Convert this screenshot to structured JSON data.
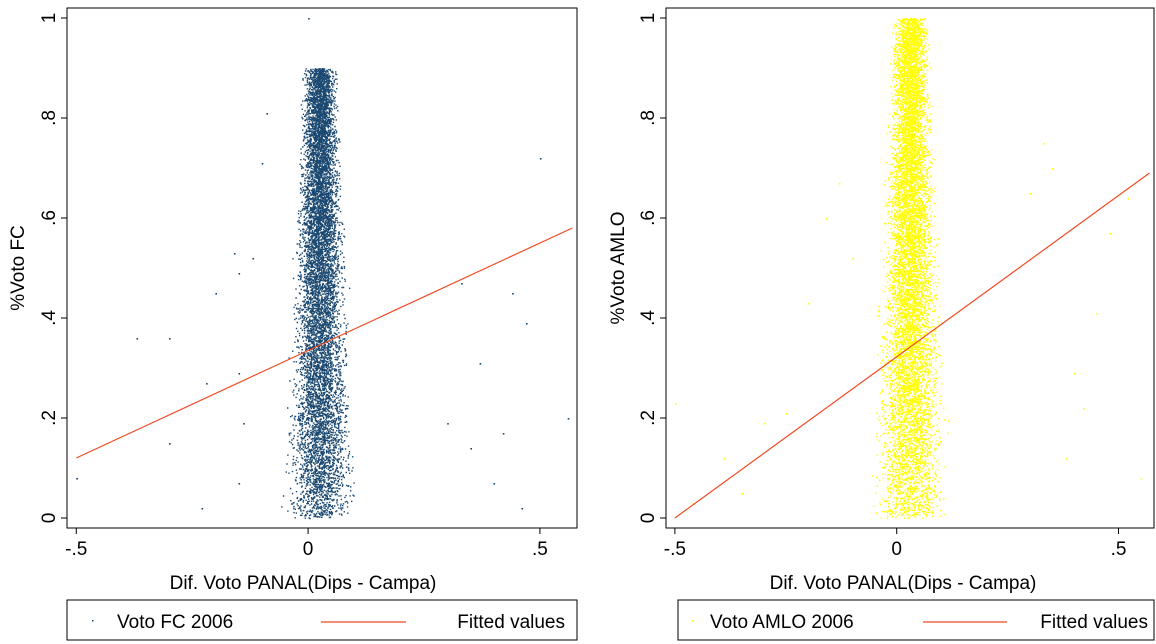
{
  "chart_data": [
    {
      "type": "scatter",
      "xlabel": "Dif. Voto PANAL(Dips - Campa)",
      "ylabel": "%Voto FC",
      "xlim": [
        -0.52,
        0.58
      ],
      "ylim": [
        -0.02,
        1.02
      ],
      "xticks": [
        {
          "value": -0.5,
          "label": "-.5"
        },
        {
          "value": 0,
          "label": "0"
        },
        {
          "value": 0.5,
          "label": ".5"
        }
      ],
      "yticks": [
        {
          "value": 0,
          "label": "0"
        },
        {
          "value": 0.2,
          "label": ".2"
        },
        {
          "value": 0.4,
          "label": ".4"
        },
        {
          "value": 0.6,
          "label": ".6"
        },
        {
          "value": 0.8,
          "label": ".8"
        },
        {
          "value": 1,
          "label": "1"
        }
      ],
      "series": [
        {
          "name": "Voto FC 2006",
          "kind": "scatter",
          "color": "#1a4870",
          "dense_region": {
            "x_center": 0.025,
            "x_spread": 0.045,
            "y_range": [
              0.0,
              0.9
            ]
          },
          "outliers": [
            [
              -0.5,
              0.08
            ],
            [
              -0.37,
              0.36
            ],
            [
              -0.3,
              0.36
            ],
            [
              -0.2,
              0.45
            ],
            [
              -0.16,
              0.53
            ],
            [
              -0.15,
              0.49
            ],
            [
              -0.12,
              0.52
            ],
            [
              -0.1,
              0.71
            ],
            [
              -0.09,
              0.81
            ],
            [
              -0.23,
              0.02
            ],
            [
              -0.15,
              0.07
            ],
            [
              -0.14,
              0.19
            ],
            [
              -0.3,
              0.15
            ],
            [
              -0.15,
              0.29
            ],
            [
              -0.22,
              0.27
            ],
            [
              0.0,
              1.0
            ],
            [
              0.3,
              0.19
            ],
            [
              0.35,
              0.14
            ],
            [
              0.4,
              0.07
            ],
            [
              0.42,
              0.17
            ],
            [
              0.44,
              0.45
            ],
            [
              0.46,
              0.02
            ],
            [
              0.47,
              0.39
            ],
            [
              0.5,
              0.72
            ],
            [
              0.56,
              0.2
            ],
            [
              0.33,
              0.47
            ],
            [
              0.37,
              0.31
            ]
          ]
        },
        {
          "name": "Fitted values",
          "kind": "line",
          "color": "#f04b23",
          "x": [
            -0.5,
            0.57
          ],
          "y": [
            0.12,
            0.58
          ]
        }
      ],
      "legend": {
        "position": "bottom",
        "entries": [
          "Voto FC 2006",
          "Fitted values"
        ]
      }
    },
    {
      "type": "scatter",
      "xlabel": "Dif. Voto PANAL(Dips - Campa)",
      "ylabel": "%Voto AMLO",
      "xlim": [
        -0.52,
        0.58
      ],
      "ylim": [
        -0.02,
        1.02
      ],
      "xticks": [
        {
          "value": -0.5,
          "label": "-.5"
        },
        {
          "value": 0,
          "label": "0"
        },
        {
          "value": 0.5,
          "label": ".5"
        }
      ],
      "yticks": [
        {
          "value": 0,
          "label": "0"
        },
        {
          "value": 0.2,
          "label": ".2"
        },
        {
          "value": 0.4,
          "label": ".4"
        },
        {
          "value": 0.6,
          "label": ".6"
        },
        {
          "value": 0.8,
          "label": ".8"
        },
        {
          "value": 1,
          "label": "1"
        }
      ],
      "series": [
        {
          "name": "Voto AMLO 2006",
          "kind": "scatter",
          "color": "#ffff00",
          "dense_region": {
            "x_center": 0.03,
            "x_spread": 0.05,
            "y_range": [
              0.0,
              1.0
            ]
          },
          "outliers": [
            [
              -0.5,
              0.23
            ],
            [
              -0.46,
              0.03
            ],
            [
              -0.39,
              0.12
            ],
            [
              -0.3,
              0.19
            ],
            [
              -0.25,
              0.21
            ],
            [
              -0.2,
              0.43
            ],
            [
              -0.16,
              0.6
            ],
            [
              -0.13,
              0.67
            ],
            [
              -0.1,
              0.52
            ],
            [
              -0.35,
              0.05
            ],
            [
              0.3,
              0.65
            ],
            [
              0.35,
              0.7
            ],
            [
              0.38,
              0.12
            ],
            [
              0.4,
              0.29
            ],
            [
              0.45,
              0.41
            ],
            [
              0.48,
              0.57
            ],
            [
              0.52,
              0.64
            ],
            [
              0.55,
              0.08
            ],
            [
              0.42,
              0.22
            ],
            [
              0.33,
              0.75
            ]
          ]
        },
        {
          "name": "Fitted values",
          "kind": "line",
          "color": "#f04b23",
          "x": [
            -0.5,
            0.57
          ],
          "y": [
            0.0,
            0.69
          ]
        }
      ],
      "legend": {
        "position": "bottom",
        "entries": [
          "Voto AMLO 2006",
          "Fitted values"
        ]
      }
    }
  ]
}
